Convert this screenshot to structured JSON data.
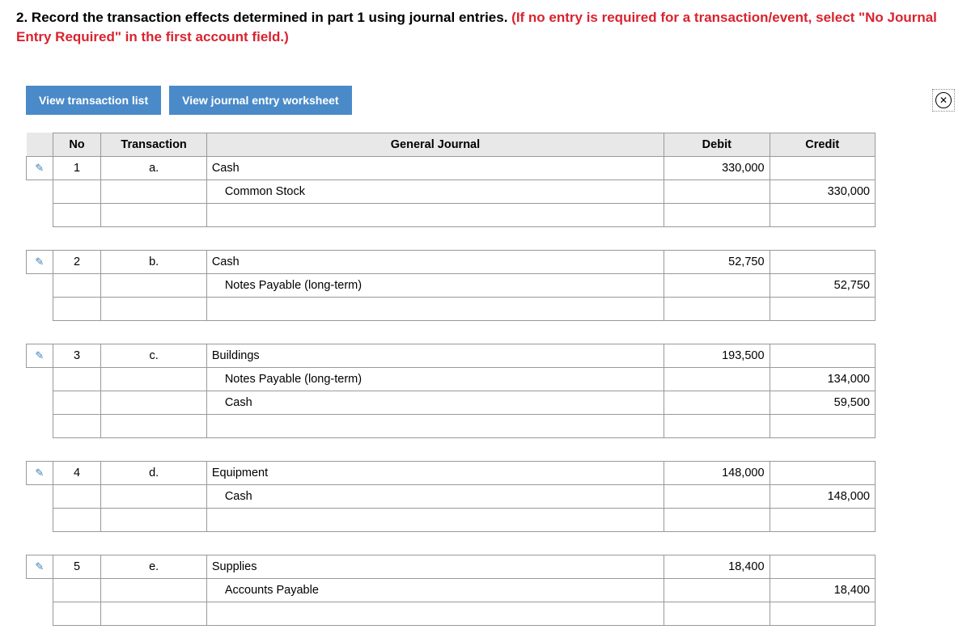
{
  "instruction": {
    "number": "2.",
    "text_black": " Record the transaction effects determined in part 1 using journal entries. ",
    "text_red": "(If no entry is required for a transaction/event, select \"No Journal Entry Required\" in the first account field.)"
  },
  "buttons": {
    "view_transactions": "View transaction list",
    "view_worksheet": "View journal entry worksheet"
  },
  "headers": {
    "no": "No",
    "transaction": "Transaction",
    "general_journal": "General Journal",
    "debit": "Debit",
    "credit": "Credit"
  },
  "entries": [
    {
      "no": "1",
      "trans": "a.",
      "lines": [
        {
          "account": "Cash",
          "indent": 0,
          "debit": "330,000",
          "credit": ""
        },
        {
          "account": "Common Stock",
          "indent": 1,
          "debit": "",
          "credit": "330,000"
        }
      ]
    },
    {
      "no": "2",
      "trans": "b.",
      "lines": [
        {
          "account": "Cash",
          "indent": 0,
          "debit": "52,750",
          "credit": ""
        },
        {
          "account": "Notes Payable (long-term)",
          "indent": 1,
          "debit": "",
          "credit": "52,750"
        }
      ]
    },
    {
      "no": "3",
      "trans": "c.",
      "lines": [
        {
          "account": "Buildings",
          "indent": 0,
          "debit": "193,500",
          "credit": ""
        },
        {
          "account": "Notes Payable (long-term)",
          "indent": 1,
          "debit": "",
          "credit": "134,000"
        },
        {
          "account": "Cash",
          "indent": 1,
          "debit": "",
          "credit": "59,500"
        }
      ]
    },
    {
      "no": "4",
      "trans": "d.",
      "lines": [
        {
          "account": "Equipment",
          "indent": 0,
          "debit": "148,000",
          "credit": ""
        },
        {
          "account": "Cash",
          "indent": 1,
          "debit": "",
          "credit": "148,000"
        }
      ]
    },
    {
      "no": "5",
      "trans": "e.",
      "lines": [
        {
          "account": "Supplies",
          "indent": 0,
          "debit": "18,400",
          "credit": ""
        },
        {
          "account": "Accounts Payable",
          "indent": 1,
          "debit": "",
          "credit": "18,400"
        }
      ]
    }
  ]
}
